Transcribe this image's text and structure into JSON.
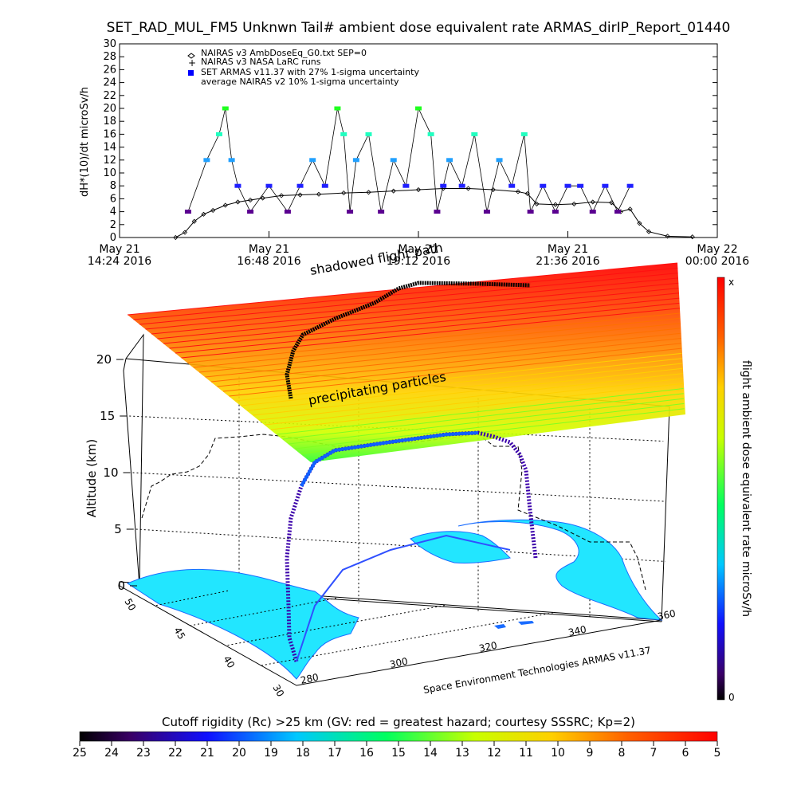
{
  "title": "SET_RAD_MUL_FM5 Unknwn Tail#  ambient dose equivalent rate ARMAS_dirIP_Report_01440",
  "chart_data": [
    {
      "type": "line",
      "ylabel": "dH*(10)/dt microSv/h",
      "ylim": [
        0,
        30
      ],
      "yticks": [
        0,
        2,
        4,
        6,
        8,
        10,
        12,
        14,
        16,
        18,
        20,
        22,
        24,
        26,
        28,
        30
      ],
      "xlim": [
        "May 21 14:24 2016",
        "May 22 00:00 2016"
      ],
      "xticks": [
        {
          "day": "May 21",
          "time": "14:24 2016"
        },
        {
          "day": "May 21",
          "time": "16:48 2016"
        },
        {
          "day": "May 21",
          "time": "19:12 2016"
        },
        {
          "day": "May 21",
          "time": "21:36 2016"
        },
        {
          "day": "May 22",
          "time": "00:00 2016"
        }
      ],
      "legend": [
        {
          "name": "NAIRAS v3 AmbDoseEq_G0.txt SEP=0",
          "marker": "open-diamond"
        },
        {
          "name": "NAIRAS v3 NASA LaRC runs",
          "marker": "plus"
        },
        {
          "name": "SET ARMAS v11.37 with 27% 1-sigma uncertainty",
          "marker": "filled-square"
        },
        {
          "name": "average NAIRAS v2 10% 1-sigma uncertainty",
          "marker": "none"
        }
      ],
      "series": [
        {
          "name": "NAIRAS v3 AmbDoseEq_G0.txt SEP=0",
          "x_hours": [
            15.3,
            15.45,
            15.6,
            15.75,
            15.9,
            16.1,
            16.3,
            16.5,
            16.7,
            17.0,
            17.3,
            17.6,
            18.0,
            18.4,
            18.8,
            19.2,
            19.6,
            20.0,
            20.4,
            20.8,
            20.95,
            21.1,
            21.4,
            21.7,
            22.0,
            22.3,
            22.45,
            22.6,
            22.75,
            22.9,
            23.2,
            23.6
          ],
          "values": [
            0,
            0.8,
            2.5,
            3.6,
            4.2,
            5.0,
            5.5,
            5.8,
            6.1,
            6.5,
            6.6,
            6.7,
            6.9,
            7.0,
            7.2,
            7.4,
            7.6,
            7.6,
            7.4,
            7.1,
            6.8,
            5.2,
            5.1,
            5.2,
            5.5,
            5.4,
            4.0,
            4.4,
            2.2,
            0.9,
            0.2,
            0.1
          ]
        },
        {
          "name": "SET ARMAS v11.37 with 27% 1-sigma uncertainty",
          "x_hours": [
            15.5,
            15.8,
            16.0,
            16.1,
            16.2,
            16.3,
            16.5,
            16.8,
            17.1,
            17.3,
            17.5,
            17.7,
            17.9,
            18.0,
            18.1,
            18.2,
            18.4,
            18.6,
            18.8,
            19.0,
            19.2,
            19.4,
            19.5,
            19.6,
            19.7,
            19.9,
            20.1,
            20.3,
            20.5,
            20.7,
            20.9,
            21.0,
            21.2,
            21.4,
            21.6,
            21.8,
            22.0,
            22.2,
            22.4,
            22.6
          ],
          "values": [
            4,
            12,
            16,
            20,
            12,
            8,
            4,
            8,
            4,
            8,
            12,
            8,
            20,
            16,
            4,
            12,
            16,
            4,
            12,
            8,
            20,
            16,
            4,
            8,
            12,
            8,
            16,
            4,
            12,
            8,
            16,
            4,
            8,
            4,
            8,
            8,
            4,
            8,
            4,
            8
          ]
        }
      ]
    },
    {
      "type": "heatmap",
      "view": "3D flight path over map",
      "zlabel": "Altitude (km)",
      "zticks": [
        0,
        5,
        10,
        15,
        20
      ],
      "longitude_ticks": [
        280,
        300,
        320,
        340,
        360
      ],
      "latitude_ticks": [
        30,
        40,
        45,
        50
      ],
      "annotations": [
        "shadowed flight path",
        "precipitating particles",
        "Space Environment Technologies ARMAS v11.37"
      ],
      "right_colorbar": {
        "label": "flight ambient dose equivalent rate microSv/h",
        "max_label": "x",
        "min_label": "0"
      },
      "bottom_colorbar": {
        "label": "Cutoff rigidity (Rc) >25 km (GV: red = greatest hazard; courtesy SSSRC; Kp=2)",
        "ticks": [
          25,
          24,
          23,
          22,
          21,
          20,
          19,
          18,
          17,
          16,
          15,
          14,
          13,
          12,
          11,
          10,
          9,
          8,
          7,
          6,
          5
        ]
      },
      "colors": {
        "high": "#ff0000",
        "mid": "#ffff00",
        "low_mid": "#00ff00",
        "cyan": "#00ffff",
        "blue": "#0000ff",
        "low": "#000000",
        "map_fill": "#22e6ff"
      }
    }
  ]
}
